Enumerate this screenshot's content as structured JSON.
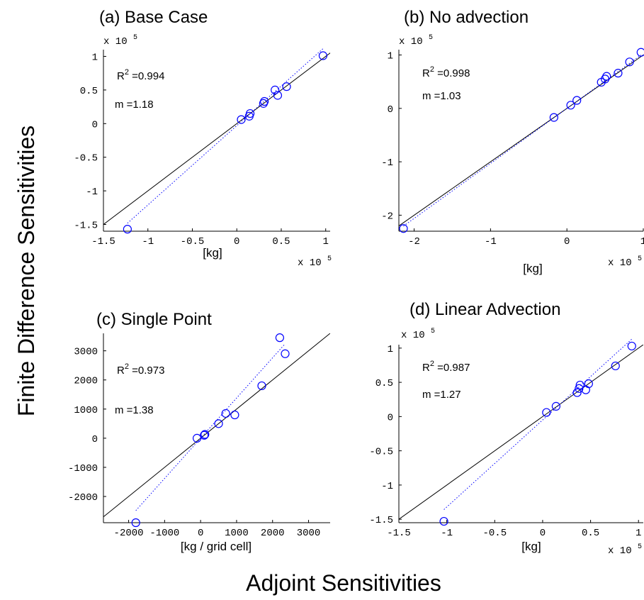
{
  "figure": {
    "ylabel": "Finite Difference Sensitivities",
    "xlabel": "Adjoint  Sensitivities"
  },
  "colors": {
    "data": "#0000ff",
    "axis": "#000000",
    "line": "#000000"
  },
  "chart_data": [
    {
      "type": "scatter",
      "title": "(a) Base Case",
      "xlabel": "[kg]",
      "x_exponent_label": "x 10",
      "y_exponent_label": "x 10",
      "exponent": "5",
      "xlim": [
        -1.5,
        1.05
      ],
      "ylim": [
        -1.6,
        1.1
      ],
      "xticks": [
        -1.5,
        -1,
        -0.5,
        0,
        0.5,
        1
      ],
      "xtick_labels": [
        "-1.5",
        "-1",
        "-0.5",
        "0",
        "0.5",
        "1"
      ],
      "yticks": [
        -1.5,
        -1,
        -0.5,
        0,
        0.5,
        1
      ],
      "ytick_labels": [
        "-1.5",
        "-1",
        "-0.5",
        "0",
        "0.5",
        "1"
      ],
      "r2_label": "R",
      "r2_value": " =0.994",
      "m_label": "m =1.18",
      "fit": {
        "slope": 1.18,
        "intercept": -0.03
      },
      "points": [
        {
          "x": -1.23,
          "y": -1.57
        },
        {
          "x": 0.05,
          "y": 0.06
        },
        {
          "x": 0.14,
          "y": 0.11
        },
        {
          "x": 0.15,
          "y": 0.15
        },
        {
          "x": 0.3,
          "y": 0.3
        },
        {
          "x": 0.31,
          "y": 0.33
        },
        {
          "x": 0.43,
          "y": 0.5
        },
        {
          "x": 0.46,
          "y": 0.42
        },
        {
          "x": 0.56,
          "y": 0.55
        },
        {
          "x": 0.97,
          "y": 1.01
        }
      ]
    },
    {
      "type": "scatter",
      "title": "(b) No advection",
      "xlabel": "[kg]",
      "x_exponent_label": "x 10",
      "y_exponent_label": "x 10",
      "exponent": "5",
      "xlim": [
        -2.2,
        1.0
      ],
      "ylim": [
        -2.3,
        1.1
      ],
      "xticks": [
        -2,
        -1,
        0,
        1
      ],
      "xtick_labels": [
        "-2",
        "-1",
        "0",
        "1"
      ],
      "yticks": [
        -2,
        -1,
        0,
        1
      ],
      "ytick_labels": [
        "-2",
        "-1",
        "0",
        "1"
      ],
      "r2_label": "R",
      "r2_value": " =0.998",
      "m_label": "m =1.03",
      "fit": {
        "slope": 1.03,
        "intercept": 0.0
      },
      "points": [
        {
          "x": -2.14,
          "y": -2.25
        },
        {
          "x": -0.17,
          "y": -0.17
        },
        {
          "x": 0.05,
          "y": 0.06
        },
        {
          "x": 0.13,
          "y": 0.15
        },
        {
          "x": 0.45,
          "y": 0.49
        },
        {
          "x": 0.5,
          "y": 0.55
        },
        {
          "x": 0.52,
          "y": 0.6
        },
        {
          "x": 0.67,
          "y": 0.66
        },
        {
          "x": 0.82,
          "y": 0.87
        },
        {
          "x": 0.97,
          "y": 1.05
        }
      ]
    },
    {
      "type": "scatter",
      "title": "(c) Single Point",
      "xlabel": "[kg / grid cell]",
      "xlim": [
        -2700,
        3600
      ],
      "ylim": [
        -2900,
        3600
      ],
      "xticks": [
        -2000,
        -1000,
        0,
        1000,
        2000,
        3000
      ],
      "xtick_labels": [
        "-2000",
        "-1000",
        "0",
        "1000",
        "2000",
        "3000"
      ],
      "yticks": [
        -2000,
        -1000,
        0,
        1000,
        2000,
        3000
      ],
      "ytick_labels": [
        "-2000",
        "-1000",
        "0",
        "1000",
        "2000",
        "3000"
      ],
      "r2_label": "R",
      "r2_value": " =0.973",
      "m_label": "m =1.38",
      "fit": {
        "slope": 1.38,
        "intercept": 0
      },
      "points": [
        {
          "x": -1800,
          "y": -2900
        },
        {
          "x": -100,
          "y": 0
        },
        {
          "x": 100,
          "y": 100
        },
        {
          "x": 120,
          "y": 130
        },
        {
          "x": 500,
          "y": 500
        },
        {
          "x": 700,
          "y": 850
        },
        {
          "x": 950,
          "y": 800
        },
        {
          "x": 1700,
          "y": 1800
        },
        {
          "x": 2200,
          "y": 3450
        },
        {
          "x": 2350,
          "y": 2900
        }
      ]
    },
    {
      "type": "scatter",
      "title": "(d) Linear Advection",
      "xlabel": "[kg]",
      "x_exponent_label": "x 10",
      "y_exponent_label": "x 10",
      "exponent": "5",
      "xlim": [
        -1.5,
        1.05
      ],
      "ylim": [
        -1.55,
        1.05
      ],
      "xticks": [
        -1.5,
        -1,
        -0.5,
        0,
        0.5,
        1
      ],
      "xtick_labels": [
        "-1.5",
        "-1",
        "-0.5",
        "0",
        "0.5",
        "1"
      ],
      "yticks": [
        -1.5,
        -1,
        -0.5,
        0,
        0.5,
        1
      ],
      "ytick_labels": [
        "-1.5",
        "-1",
        "-0.5",
        "0",
        "0.5",
        "1"
      ],
      "r2_label": "R",
      "r2_value": " =0.987",
      "m_label": "m =1.27",
      "fit": {
        "slope": 1.27,
        "intercept": -0.05
      },
      "points": [
        {
          "x": -1.03,
          "y": -1.53
        },
        {
          "x": 0.04,
          "y": 0.06
        },
        {
          "x": 0.14,
          "y": 0.15
        },
        {
          "x": 0.36,
          "y": 0.35
        },
        {
          "x": 0.38,
          "y": 0.41
        },
        {
          "x": 0.39,
          "y": 0.46
        },
        {
          "x": 0.45,
          "y": 0.39
        },
        {
          "x": 0.48,
          "y": 0.48
        },
        {
          "x": 0.76,
          "y": 0.74
        },
        {
          "x": 0.93,
          "y": 1.03
        }
      ]
    }
  ]
}
